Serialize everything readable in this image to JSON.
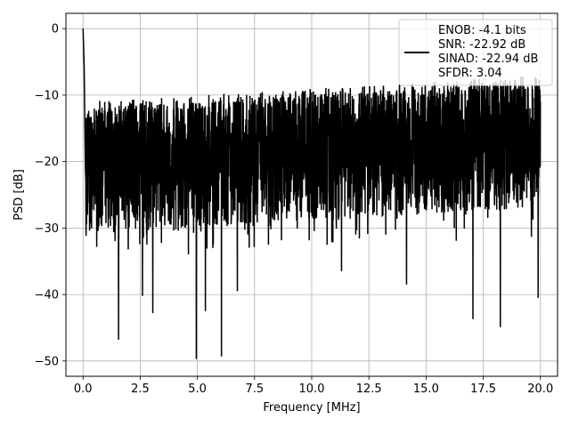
{
  "chart_data": {
    "type": "line",
    "title": "",
    "xlabel": "Frequency [MHz]",
    "ylabel": "PSD [dB]",
    "xlim": [
      -0.75,
      20.75
    ],
    "ylim": [
      -52.3,
      2.3
    ],
    "xticks": [
      0.0,
      2.5,
      5.0,
      7.5,
      10.0,
      12.5,
      15.0,
      17.5,
      20.0
    ],
    "xtick_labels": [
      "0.0",
      "2.5",
      "5.0",
      "7.5",
      "10.0",
      "12.5",
      "15.0",
      "17.5",
      "20.0"
    ],
    "yticks": [
      0,
      -10,
      -20,
      -30,
      -40,
      -50
    ],
    "ytick_labels": [
      "0",
      "−10",
      "−20",
      "−30",
      "−40",
      "−50"
    ],
    "grid": true,
    "legend_position": "top-right",
    "series": [
      {
        "name": "ENOB: -4.1 bits\nSNR: -22.92 dB\nSINAD: -22.94 dB\nSFDR: 3.04",
        "color": "#000000",
        "x_range": [
          0.0,
          20.0
        ],
        "noise_floor_start": -19,
        "noise_floor_end": -15,
        "upper_envelope_start": -12,
        "upper_envelope_end": -8,
        "peaks": [
          [
            0.0,
            0.0
          ],
          [
            0.05,
            -6.0
          ],
          [
            0.1,
            -21.0
          ]
        ],
        "dips": [
          [
            1.55,
            -46.8
          ],
          [
            2.6,
            -40.2
          ],
          [
            3.05,
            -42.8
          ],
          [
            4.95,
            -49.7
          ],
          [
            5.35,
            -42.5
          ],
          [
            6.05,
            -49.3
          ],
          [
            6.75,
            -39.5
          ],
          [
            11.3,
            -36.5
          ],
          [
            14.15,
            -38.5
          ],
          [
            17.05,
            -43.7
          ],
          [
            18.25,
            -44.9
          ],
          [
            19.9,
            -40.5
          ]
        ]
      }
    ]
  }
}
